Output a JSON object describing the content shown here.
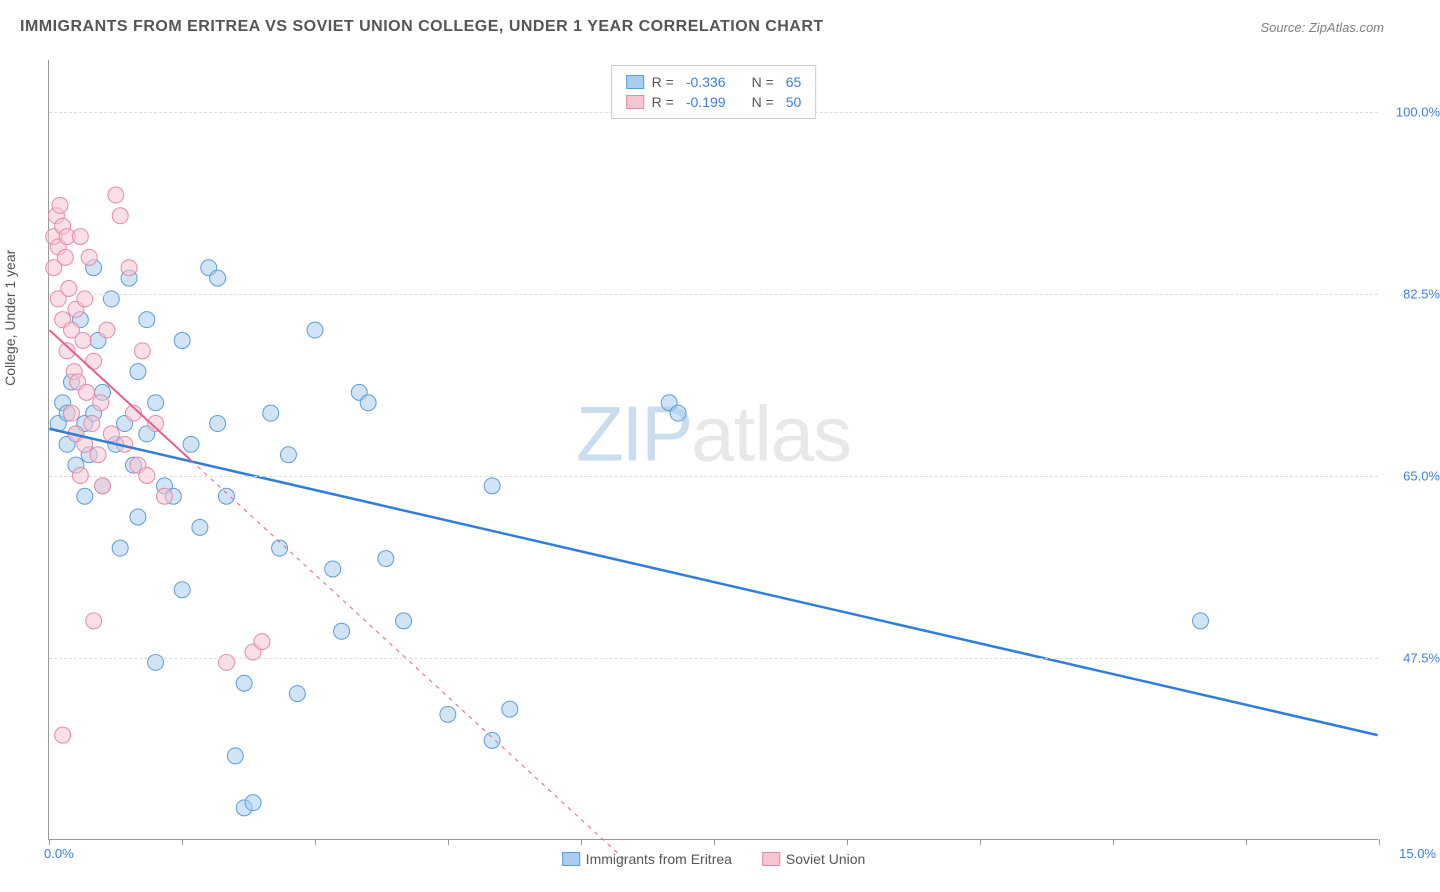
{
  "title": "IMMIGRANTS FROM ERITREA VS SOVIET UNION COLLEGE, UNDER 1 YEAR CORRELATION CHART",
  "source": "Source: ZipAtlas.com",
  "y_axis_label": "College, Under 1 year",
  "watermark": {
    "part1": "ZIP",
    "part2": "atlas"
  },
  "chart": {
    "type": "scatter",
    "xlim": [
      0,
      15
    ],
    "ylim": [
      30,
      105
    ],
    "x_ticks": [
      0,
      1.5,
      3,
      4.5,
      6,
      7.5,
      9,
      10.5,
      12,
      13.5,
      15
    ],
    "x_tick_labels_visible": {
      "0": "0.0%",
      "15": "15.0%"
    },
    "y_gridlines": [
      47.5,
      65.0,
      82.5,
      100.0
    ],
    "y_tick_labels": [
      "47.5%",
      "65.0%",
      "82.5%",
      "100.0%"
    ],
    "background_color": "#ffffff",
    "grid_color": "#dddddd",
    "axis_color": "#999999",
    "tick_label_color": "#3b82d6",
    "marker_radius": 8,
    "marker_opacity": 0.55,
    "series": [
      {
        "name": "Immigrants from Eritrea",
        "color_fill": "#a9cdef",
        "color_stroke": "#5d9dd8",
        "R": "-0.336",
        "N": "65",
        "regression": {
          "x1": 0.0,
          "y1": 69.5,
          "x2": 15.0,
          "y2": 40.0,
          "stroke": "#2f7ed8",
          "width": 2.5,
          "dash_rest_from_x": null
        },
        "points": [
          [
            0.1,
            70
          ],
          [
            0.15,
            72
          ],
          [
            0.2,
            68
          ],
          [
            0.2,
            71
          ],
          [
            0.25,
            74
          ],
          [
            0.3,
            69
          ],
          [
            0.3,
            66
          ],
          [
            0.35,
            80
          ],
          [
            0.4,
            70
          ],
          [
            0.4,
            63
          ],
          [
            0.45,
            67
          ],
          [
            0.5,
            85
          ],
          [
            0.5,
            71
          ],
          [
            0.55,
            78
          ],
          [
            0.6,
            64
          ],
          [
            0.6,
            73
          ],
          [
            0.7,
            82
          ],
          [
            0.75,
            68
          ],
          [
            0.8,
            58
          ],
          [
            0.85,
            70
          ],
          [
            0.9,
            84
          ],
          [
            0.95,
            66
          ],
          [
            1.0,
            75
          ],
          [
            1.0,
            61
          ],
          [
            1.1,
            80
          ],
          [
            1.1,
            69
          ],
          [
            1.2,
            47
          ],
          [
            1.2,
            72
          ],
          [
            1.3,
            64
          ],
          [
            1.4,
            63
          ],
          [
            1.5,
            78
          ],
          [
            1.5,
            54
          ],
          [
            1.6,
            68
          ],
          [
            1.7,
            60
          ],
          [
            1.8,
            85
          ],
          [
            1.9,
            84
          ],
          [
            1.9,
            70
          ],
          [
            2.0,
            63
          ],
          [
            2.1,
            38
          ],
          [
            2.2,
            45
          ],
          [
            2.2,
            33
          ],
          [
            2.3,
            33.5
          ],
          [
            2.5,
            71
          ],
          [
            2.6,
            58
          ],
          [
            2.7,
            67
          ],
          [
            2.8,
            44
          ],
          [
            3.0,
            79
          ],
          [
            3.2,
            56
          ],
          [
            3.3,
            50
          ],
          [
            3.5,
            73
          ],
          [
            3.6,
            72
          ],
          [
            3.8,
            57
          ],
          [
            4.0,
            51
          ],
          [
            4.5,
            42
          ],
          [
            5.0,
            64
          ],
          [
            5.0,
            39.5
          ],
          [
            5.2,
            42.5
          ],
          [
            7.0,
            72
          ],
          [
            7.1,
            71
          ],
          [
            13.0,
            51
          ]
        ]
      },
      {
        "name": "Soviet Union",
        "color_fill": "#f7c4d1",
        "color_stroke": "#e68aa5",
        "R": "-0.199",
        "N": "50",
        "regression": {
          "x1": 0.0,
          "y1": 79.0,
          "x2": 6.5,
          "y2": 28.0,
          "stroke": "#e85f85",
          "width": 2,
          "dash_rest_from_x": 1.6
        },
        "points": [
          [
            0.05,
            88
          ],
          [
            0.05,
            85
          ],
          [
            0.08,
            90
          ],
          [
            0.1,
            87
          ],
          [
            0.1,
            82
          ],
          [
            0.12,
            91
          ],
          [
            0.15,
            89
          ],
          [
            0.15,
            80
          ],
          [
            0.18,
            86
          ],
          [
            0.2,
            77
          ],
          [
            0.2,
            88
          ],
          [
            0.22,
            83
          ],
          [
            0.25,
            79
          ],
          [
            0.25,
            71
          ],
          [
            0.28,
            75
          ],
          [
            0.3,
            81
          ],
          [
            0.3,
            69
          ],
          [
            0.32,
            74
          ],
          [
            0.35,
            88
          ],
          [
            0.35,
            65
          ],
          [
            0.38,
            78
          ],
          [
            0.4,
            82
          ],
          [
            0.4,
            68
          ],
          [
            0.42,
            73
          ],
          [
            0.45,
            86
          ],
          [
            0.48,
            70
          ],
          [
            0.5,
            51
          ],
          [
            0.5,
            76
          ],
          [
            0.55,
            67
          ],
          [
            0.58,
            72
          ],
          [
            0.6,
            64
          ],
          [
            0.65,
            79
          ],
          [
            0.7,
            69
          ],
          [
            0.75,
            92
          ],
          [
            0.8,
            90
          ],
          [
            0.85,
            68
          ],
          [
            0.9,
            85
          ],
          [
            0.95,
            71
          ],
          [
            1.0,
            66
          ],
          [
            1.05,
            77
          ],
          [
            1.1,
            65
          ],
          [
            1.2,
            70
          ],
          [
            1.3,
            63
          ],
          [
            0.15,
            40
          ],
          [
            2.3,
            48
          ],
          [
            2.4,
            49
          ],
          [
            2.0,
            47
          ]
        ]
      }
    ],
    "legend_top": {
      "rows": [
        {
          "swatch_fill": "#a9cdef",
          "swatch_stroke": "#5d9dd8",
          "r_label": "R =",
          "r_val": "-0.336",
          "n_label": "N =",
          "n_val": "65"
        },
        {
          "swatch_fill": "#f7c4d1",
          "swatch_stroke": "#e68aa5",
          "r_label": "R =",
          "r_val": "-0.199",
          "n_label": "N =",
          "n_val": "50"
        }
      ]
    },
    "legend_bottom": [
      {
        "swatch_fill": "#a9cdef",
        "swatch_stroke": "#5d9dd8",
        "label": "Immigrants from Eritrea"
      },
      {
        "swatch_fill": "#f7c4d1",
        "swatch_stroke": "#e68aa5",
        "label": "Soviet Union"
      }
    ]
  }
}
